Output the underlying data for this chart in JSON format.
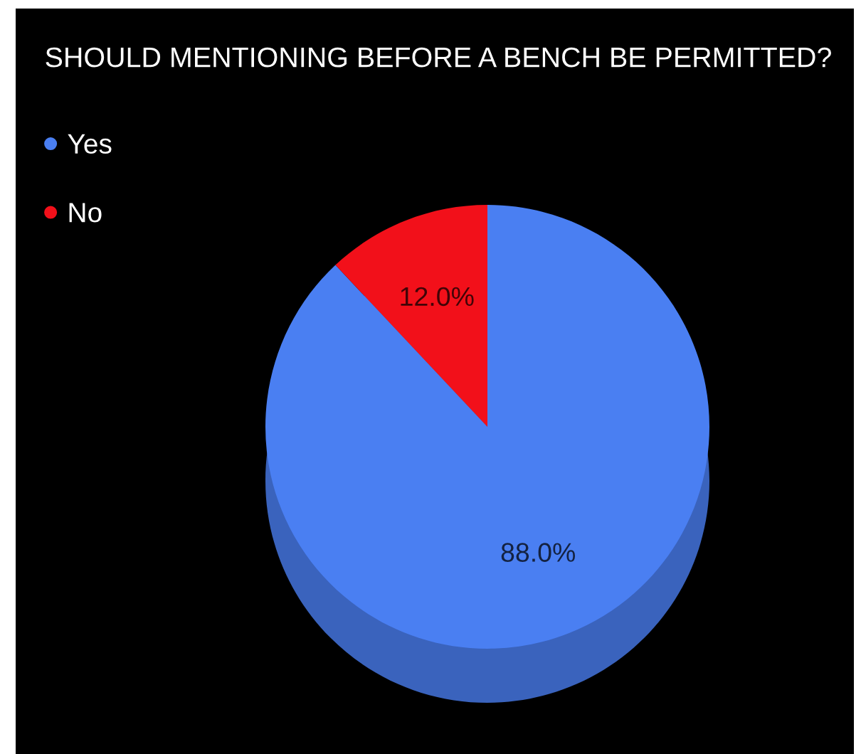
{
  "chart_data": {
    "type": "pie",
    "title": "SHOULD MENTIONING BEFORE A BENCH BE PERMITTED?",
    "categories": [
      "Yes",
      "No"
    ],
    "values": [
      88,
      12
    ],
    "colors": [
      "#4a7ff2",
      "#f2101a"
    ],
    "value_labels": [
      "88.0%",
      "12.0%"
    ],
    "legend": "top left"
  }
}
